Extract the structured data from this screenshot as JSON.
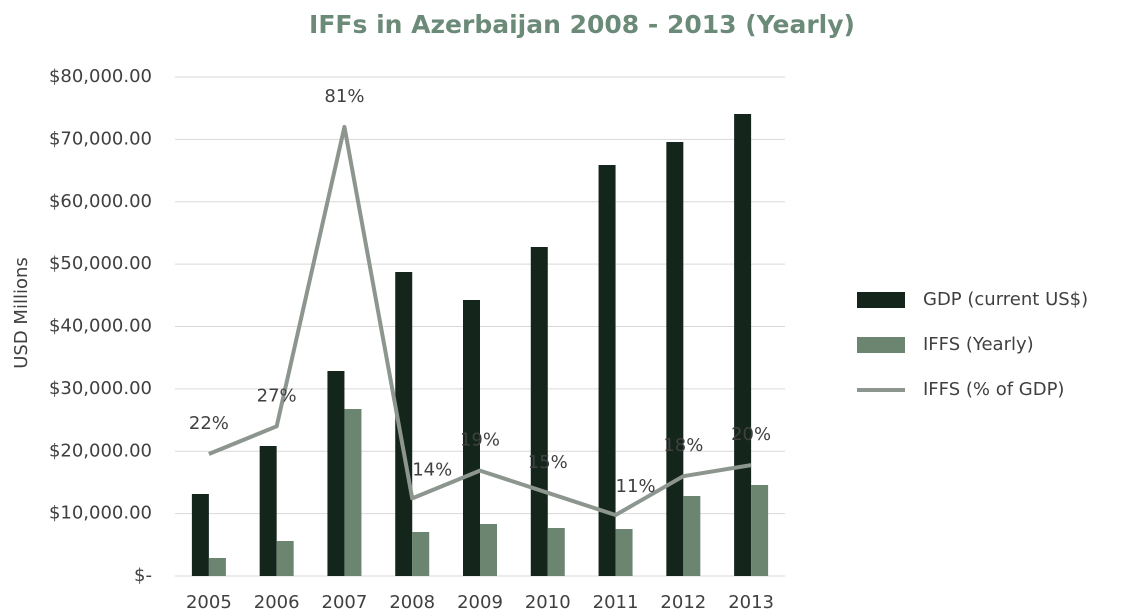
{
  "chart_data": {
    "type": "bar_line",
    "title": "IFFs in Azerbaijan 2008 - 2013 (Yearly)",
    "y_label": "USD Millions",
    "categories": [
      "2005",
      "2006",
      "2007",
      "2008",
      "2009",
      "2010",
      "2011",
      "2012",
      "2013"
    ],
    "series": [
      {
        "name": "GDP (current US$)",
        "type": "bar",
        "color": "#14261c",
        "values": [
          13146,
          20842,
          32866,
          48737,
          44248,
          52745,
          65892,
          69579,
          74068
        ]
      },
      {
        "name": "IFFS (Yearly)",
        "type": "bar",
        "color": "#6b8570",
        "values": [
          2886,
          5611,
          26774,
          7054,
          8337,
          7695,
          7535,
          12826,
          14589
        ]
      },
      {
        "name": "IFFS (% of GDP)",
        "type": "line",
        "axis": "y2",
        "color": "#8c968f",
        "values": [
          22,
          27,
          81,
          14,
          19,
          15,
          11,
          18,
          20
        ],
        "value_labels": [
          "22%",
          "27%",
          "81%",
          "14%",
          "19%",
          "15%",
          "11%",
          "18%",
          "20%"
        ]
      }
    ],
    "ylim": [
      0,
      80000
    ],
    "yticks": [
      {
        "value": 0,
        "label": "$-"
      },
      {
        "value": 10000,
        "label": "$10,000.00"
      },
      {
        "value": 20000,
        "label": "$20,000.00"
      },
      {
        "value": 30000,
        "label": "$30,000.00"
      },
      {
        "value": 40000,
        "label": "$40,000.00"
      },
      {
        "value": 50000,
        "label": "$50,000.00"
      },
      {
        "value": 60000,
        "label": "$60,000.00"
      },
      {
        "value": 70000,
        "label": "$70,000.00"
      },
      {
        "value": 80000,
        "label": "$80,000.00"
      }
    ],
    "y2lim": [
      0,
      90
    ],
    "grid": true,
    "legend": "right"
  }
}
